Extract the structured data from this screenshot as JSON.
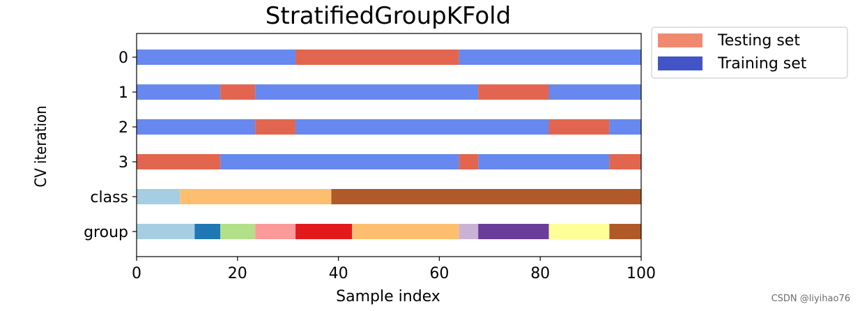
{
  "chart_data": {
    "type": "bar",
    "title": "StratifiedGroupKFold",
    "xlabel": "Sample index",
    "ylabel": "CV iteration",
    "xlim": [
      0,
      100
    ],
    "xticks": [
      0,
      20,
      40,
      60,
      80,
      100
    ],
    "row_labels": [
      "0",
      "1",
      "2",
      "3",
      "class",
      "group"
    ],
    "legend": {
      "placement": "outside upper right",
      "entries": [
        {
          "label": "Testing set",
          "color": "#ef8a6f"
        },
        {
          "label": "Training set",
          "color": "#4353c8"
        }
      ]
    },
    "colors": {
      "test": "#e2664f",
      "train": "#6788ee"
    },
    "rows": [
      {
        "name": "0",
        "segments": [
          {
            "start": 0,
            "end": 31.5,
            "role": "train"
          },
          {
            "start": 31.5,
            "end": 63.9,
            "role": "test"
          },
          {
            "start": 63.9,
            "end": 100,
            "role": "train"
          }
        ]
      },
      {
        "name": "1",
        "segments": [
          {
            "start": 0,
            "end": 16.6,
            "role": "train"
          },
          {
            "start": 16.6,
            "end": 23.5,
            "role": "test"
          },
          {
            "start": 23.5,
            "end": 67.7,
            "role": "train"
          },
          {
            "start": 67.7,
            "end": 81.7,
            "role": "test"
          },
          {
            "start": 81.7,
            "end": 100,
            "role": "train"
          }
        ]
      },
      {
        "name": "2",
        "segments": [
          {
            "start": 0,
            "end": 23.5,
            "role": "train"
          },
          {
            "start": 23.5,
            "end": 31.5,
            "role": "test"
          },
          {
            "start": 31.5,
            "end": 81.7,
            "role": "train"
          },
          {
            "start": 81.7,
            "end": 93.7,
            "role": "test"
          },
          {
            "start": 93.7,
            "end": 100,
            "role": "train"
          }
        ]
      },
      {
        "name": "3",
        "segments": [
          {
            "start": 0,
            "end": 16.6,
            "role": "test"
          },
          {
            "start": 16.6,
            "end": 63.9,
            "role": "train"
          },
          {
            "start": 63.9,
            "end": 67.7,
            "role": "test"
          },
          {
            "start": 67.7,
            "end": 93.7,
            "role": "train"
          },
          {
            "start": 93.7,
            "end": 100,
            "role": "test"
          }
        ]
      },
      {
        "name": "class",
        "segments": [
          {
            "start": 0,
            "end": 8.6,
            "color": "#a6cee3"
          },
          {
            "start": 8.6,
            "end": 38.6,
            "color": "#fdbf6f"
          },
          {
            "start": 38.6,
            "end": 100,
            "color": "#b15928"
          }
        ]
      },
      {
        "name": "group",
        "segments": [
          {
            "start": 0,
            "end": 11.5,
            "color": "#a6cee3"
          },
          {
            "start": 11.5,
            "end": 16.6,
            "color": "#1f78b4"
          },
          {
            "start": 16.6,
            "end": 23.5,
            "color": "#b2df8a"
          },
          {
            "start": 23.5,
            "end": 31.5,
            "color": "#fb9a99"
          },
          {
            "start": 31.5,
            "end": 42.7,
            "color": "#e31a1c"
          },
          {
            "start": 42.7,
            "end": 63.9,
            "color": "#fdbf6f"
          },
          {
            "start": 63.9,
            "end": 67.7,
            "color": "#cab2d6"
          },
          {
            "start": 67.7,
            "end": 81.7,
            "color": "#6a3d9a"
          },
          {
            "start": 81.7,
            "end": 93.7,
            "color": "#ffff99"
          },
          {
            "start": 93.7,
            "end": 100,
            "color": "#b15928"
          }
        ]
      }
    ]
  },
  "watermark": "CSDN @liyihao76"
}
